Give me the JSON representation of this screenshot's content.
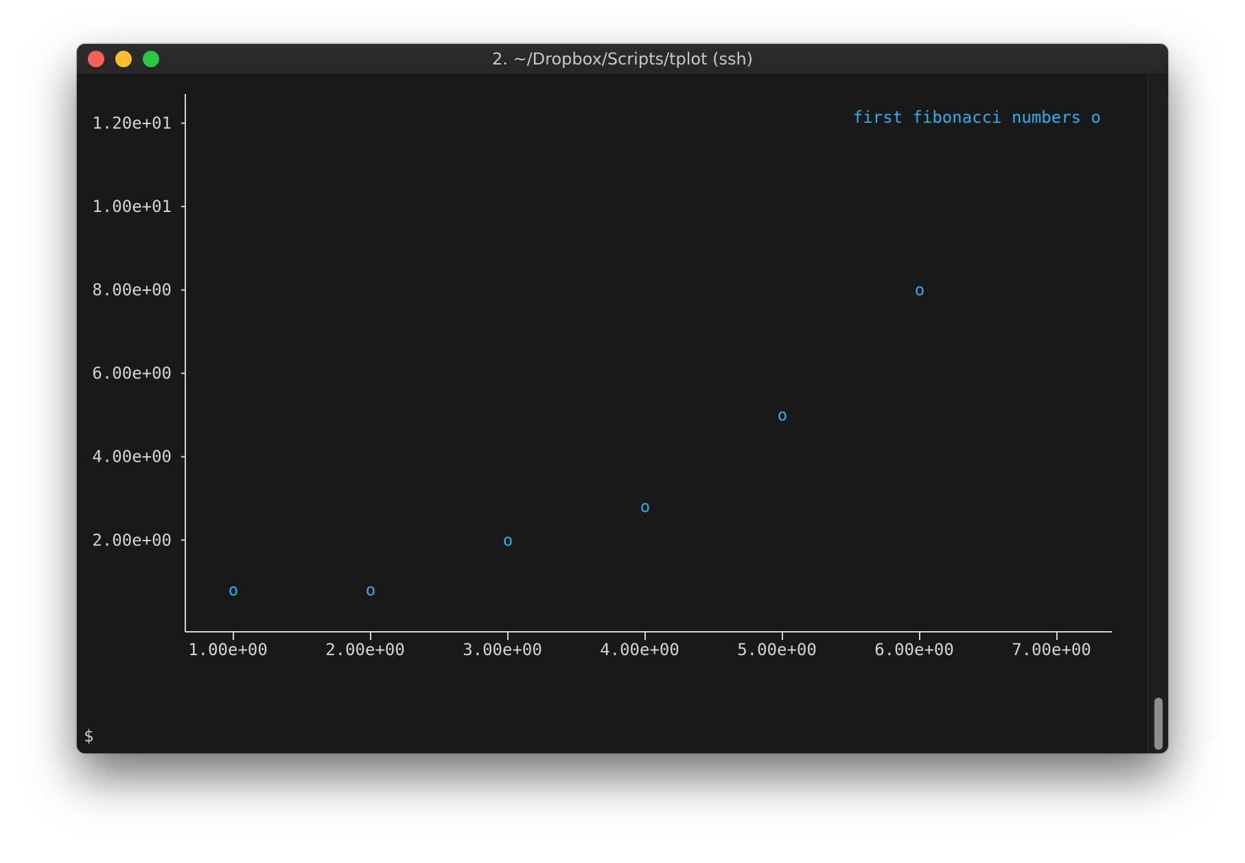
{
  "window": {
    "title": "2. ~/Dropbox/Scripts/tplot (ssh)",
    "prompt": "$"
  },
  "colors": {
    "close": "#fe5f57",
    "minimize": "#febc2e",
    "maximize": "#28c840",
    "series": "#2ab0ea",
    "axis": "#d4d4d4"
  },
  "chart_data": {
    "type": "scatter",
    "title": "",
    "xlabel": "",
    "ylabel": "",
    "xlim": [
      0.65,
      7.4
    ],
    "ylim": [
      -0.2,
      12.7
    ],
    "x_ticks": [
      1,
      2,
      3,
      4,
      5,
      6,
      7
    ],
    "x_tick_labels": [
      "1.00e+00",
      "2.00e+00",
      "3.00e+00",
      "4.00e+00",
      "5.00e+00",
      "6.00e+00",
      "7.00e+00"
    ],
    "y_ticks": [
      2,
      4,
      6,
      8,
      10,
      12
    ],
    "y_tick_labels": [
      "2.00e+00",
      "4.00e+00",
      "6.00e+00",
      "8.00e+00",
      "1.00e+01",
      "1.20e+01"
    ],
    "grid": false,
    "legend_position": "top-right",
    "series": [
      {
        "name": "first fibonacci numbers",
        "marker": "o",
        "x": [
          1,
          2,
          3,
          4,
          5,
          6
        ],
        "y": [
          0.8,
          0.8,
          2,
          2.8,
          5,
          8
        ]
      }
    ]
  }
}
